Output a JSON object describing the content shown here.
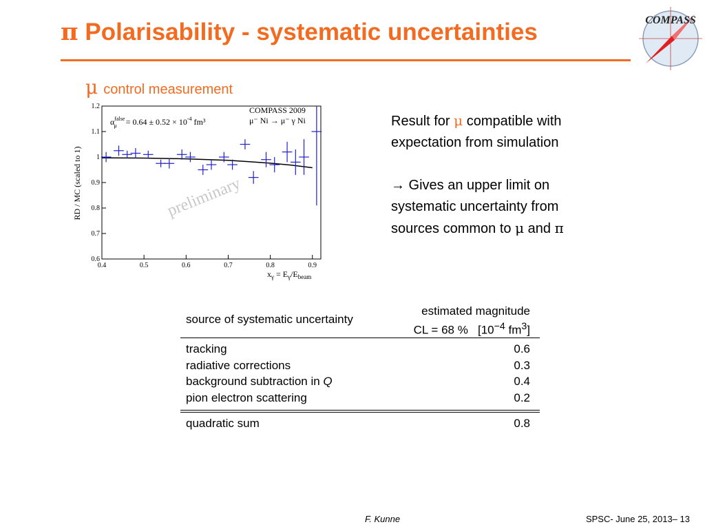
{
  "header": {
    "title_greek": "π",
    "title_text": " Polarisability - systematic uncertainties",
    "logo_text": "COMPASS"
  },
  "subheading": {
    "symbol": "μ",
    "text": "control measurement"
  },
  "plot": {
    "experiment_label": "COMPASS 2009",
    "reaction_label": "μ⁻ Ni → μ⁻ γ Ni",
    "alpha_symbol": "α",
    "alpha_sup": "false",
    "alpha_sub": "μ",
    "alpha_value": " = 0.64 ± 0.52 × 10",
    "alpha_exp": "-4",
    "alpha_unit": " fm³",
    "watermark": "preliminary",
    "xlabel": "xγ = Eγ/Ebeam",
    "ylabel": "RD / MC  (scaled to 1)"
  },
  "chart_data": {
    "type": "scatter",
    "title": "",
    "xlabel": "xγ = Eγ/Ebeam",
    "ylabel": "RD / MC  (scaled to 1)",
    "xlim": [
      0.4,
      0.92
    ],
    "ylim": [
      0.6,
      1.2
    ],
    "x_ticks": [
      "0.4",
      "0.5",
      "0.6",
      "0.7",
      "0.8",
      "0.9"
    ],
    "y_ticks": [
      "0.6",
      "0.7",
      "0.8",
      "0.9",
      "1",
      "1.1",
      "1.2"
    ],
    "grid": false,
    "series": [
      {
        "x": [
          0.41,
          0.44,
          0.46,
          0.48,
          0.51,
          0.54,
          0.56,
          0.59,
          0.61,
          0.64,
          0.66,
          0.69,
          0.71,
          0.74,
          0.76,
          0.79,
          0.81,
          0.84,
          0.86,
          0.88,
          0.91
        ],
        "y": [
          1.0,
          1.025,
          1.01,
          1.015,
          1.01,
          0.975,
          0.975,
          1.01,
          1.0,
          0.95,
          0.97,
          1.0,
          0.97,
          1.05,
          0.92,
          0.99,
          0.97,
          1.02,
          0.98,
          1.0,
          1.1
        ],
        "xerr": 0.012,
        "yerr": [
          0.02,
          0.02,
          0.015,
          0.02,
          0.015,
          0.015,
          0.02,
          0.02,
          0.02,
          0.02,
          0.02,
          0.02,
          0.02,
          0.02,
          0.025,
          0.03,
          0.03,
          0.04,
          0.05,
          0.07,
          0.29
        ]
      },
      {
        "type": "line",
        "x": [
          0.4,
          0.5,
          0.6,
          0.7,
          0.75,
          0.8,
          0.85,
          0.9
        ],
        "y": [
          0.997,
          0.996,
          0.993,
          0.987,
          0.982,
          0.976,
          0.968,
          0.958
        ]
      }
    ],
    "colors": {
      "points": "#1f1fd0",
      "curve": "#000000"
    }
  },
  "result": {
    "line1_pre": "Result for ",
    "line1_mu": "μ",
    "line1_post": " compatible with",
    "line2": "expectation from simulation",
    "arrow_line": "→ Gives an upper limit on",
    "line4": "systematic uncertainty from",
    "line5_pre": "sources common to ",
    "line5_mu": "μ",
    "line5_and": " and ",
    "line5_pi": "π"
  },
  "table": {
    "col1_header": "source of systematic uncertainty",
    "col2_header_line1": "estimated magnitude",
    "col2_header_cl": "CL = 68 %",
    "col2_header_unit_pre": "[10",
    "col2_header_unit_exp": "−4",
    "col2_header_unit_post": " fm",
    "col2_header_unit_exp2": "3",
    "col2_header_unit_close": "]",
    "rows": [
      {
        "source": "tracking",
        "value": "0.6"
      },
      {
        "source": "radiative corrections",
        "value": "0.3"
      },
      {
        "source": "background subtraction in ",
        "source_italic": "Q",
        "value": "0.4"
      },
      {
        "source": "pion electron scattering",
        "value": "0.2"
      }
    ],
    "sum": {
      "source": "quadratic sum",
      "value": "0.8"
    }
  },
  "footer": {
    "author": "F. Kunne",
    "info": "SPSC- June 25, 2013– 13"
  }
}
